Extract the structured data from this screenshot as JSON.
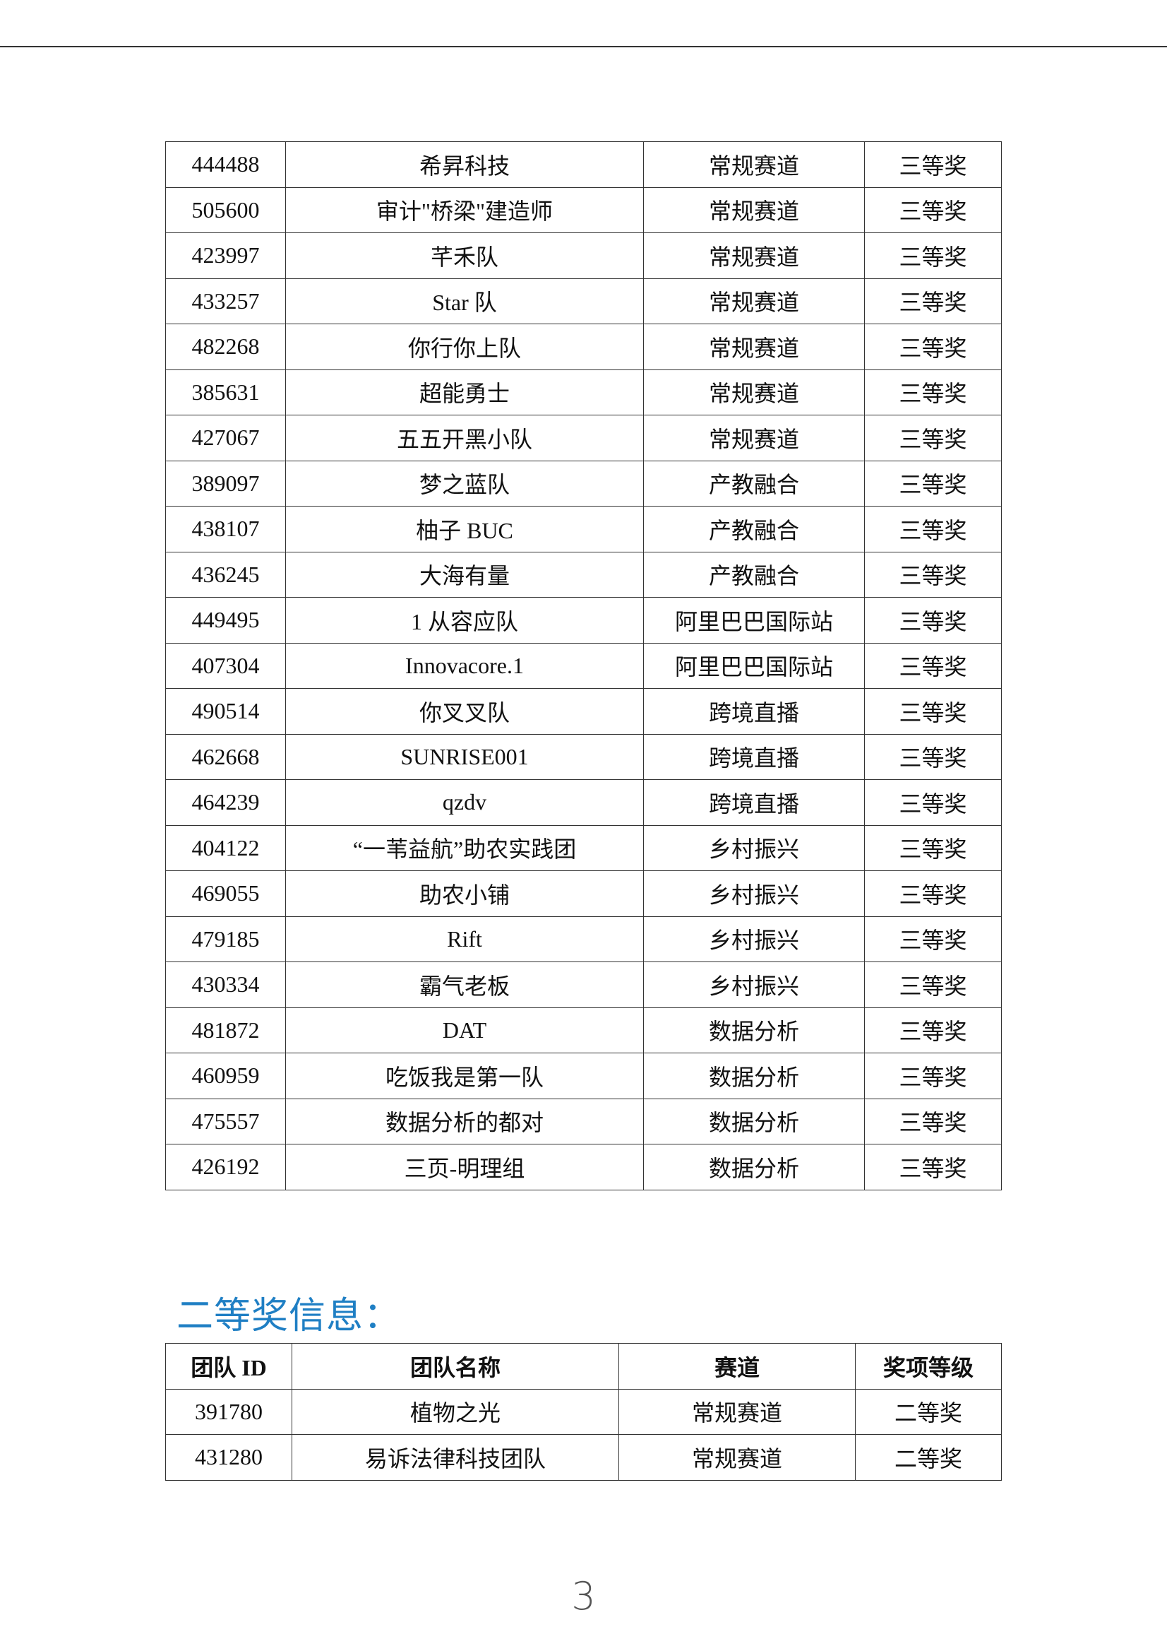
{
  "third_prize_rows": [
    [
      "444488",
      "希昇科技",
      "常规赛道",
      "三等奖"
    ],
    [
      "505600",
      "审计\"桥梁\"建造师",
      "常规赛道",
      "三等奖"
    ],
    [
      "423997",
      "芊禾队",
      "常规赛道",
      "三等奖"
    ],
    [
      "433257",
      "Star 队",
      "常规赛道",
      "三等奖"
    ],
    [
      "482268",
      "你行你上队",
      "常规赛道",
      "三等奖"
    ],
    [
      "385631",
      "超能勇士",
      "常规赛道",
      "三等奖"
    ],
    [
      "427067",
      "五五开黑小队",
      "常规赛道",
      "三等奖"
    ],
    [
      "389097",
      "梦之蓝队",
      "产教融合",
      "三等奖"
    ],
    [
      "438107",
      "柚子 BUC",
      "产教融合",
      "三等奖"
    ],
    [
      "436245",
      "大海有量",
      "产教融合",
      "三等奖"
    ],
    [
      "449495",
      "1 从容应队",
      "阿里巴巴国际站",
      "三等奖"
    ],
    [
      "407304",
      "Innovacore.1",
      "阿里巴巴国际站",
      "三等奖"
    ],
    [
      "490514",
      "你叉叉队",
      "跨境直播",
      "三等奖"
    ],
    [
      "462668",
      "SUNRISE001",
      "跨境直播",
      "三等奖"
    ],
    [
      "464239",
      "qzdv",
      "跨境直播",
      "三等奖"
    ],
    [
      "404122",
      "“一苇益航”助农实践团",
      "乡村振兴",
      "三等奖"
    ],
    [
      "469055",
      "助农小铺",
      "乡村振兴",
      "三等奖"
    ],
    [
      "479185",
      "Rift",
      "乡村振兴",
      "三等奖"
    ],
    [
      "430334",
      "霸气老板",
      "乡村振兴",
      "三等奖"
    ],
    [
      "481872",
      "DAT",
      "数据分析",
      "三等奖"
    ],
    [
      "460959",
      "吃饭我是第一队",
      "数据分析",
      "三等奖"
    ],
    [
      "475557",
      "数据分析的都对",
      "数据分析",
      "三等奖"
    ],
    [
      "426192",
      "三页-明理组",
      "数据分析",
      "三等奖"
    ]
  ],
  "second_prize": {
    "heading": "二等奖信息：",
    "headers": [
      "团队 ID",
      "团队名称",
      "赛道",
      "奖项等级"
    ],
    "rows": [
      [
        "391780",
        "植物之光",
        "常规赛道",
        "二等奖"
      ],
      [
        "431280",
        "易诉法律科技团队",
        "常规赛道",
        "二等奖"
      ]
    ]
  },
  "page_number": "3",
  "colors": {
    "heading": "#1f7fc4",
    "border": "#333333"
  }
}
